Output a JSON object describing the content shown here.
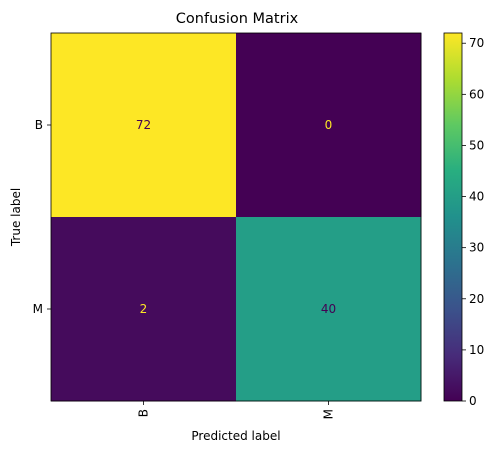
{
  "chart_data": {
    "type": "heatmap",
    "title": "Confusion Matrix",
    "xlabel": "Predicted label",
    "ylabel": "True label",
    "x_categories": [
      "B",
      "M"
    ],
    "y_categories": [
      "B",
      "M"
    ],
    "values": [
      [
        72,
        0
      ],
      [
        2,
        40
      ]
    ],
    "colormap": "viridis",
    "colorbar": {
      "range": [
        0,
        72
      ],
      "ticks": [
        0,
        10,
        20,
        30,
        40,
        50,
        60,
        70
      ]
    },
    "x_tick_rotation": 90,
    "grid": false,
    "text_colors": {
      "on_dark": "#fde725",
      "on_light": "#440154"
    }
  }
}
